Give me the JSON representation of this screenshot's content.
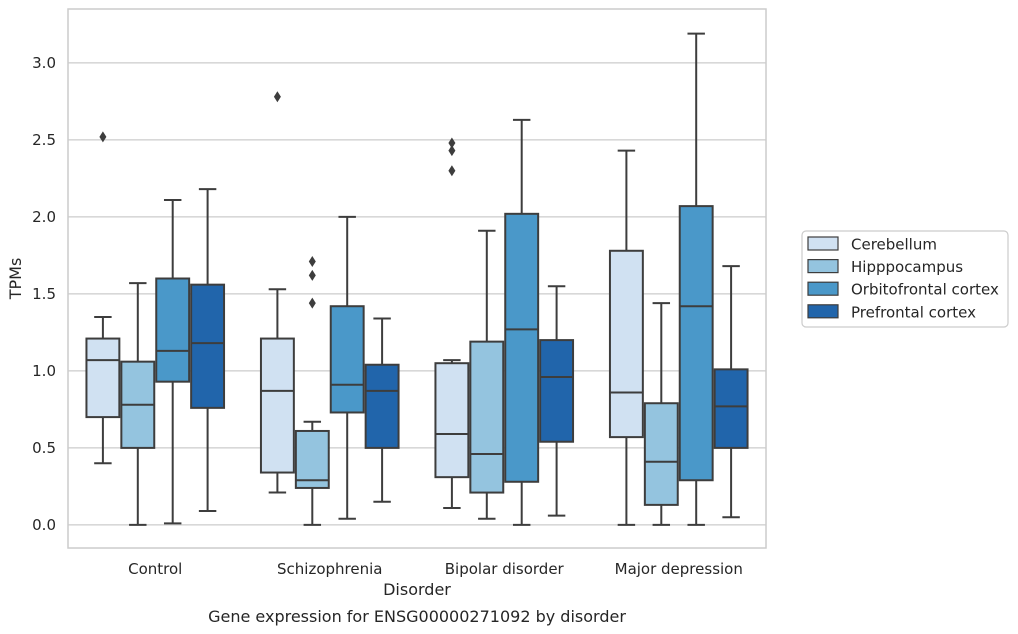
{
  "chart_data": {
    "type": "boxplot",
    "caption": "Gene expression for ENSG00000271092 by disorder",
    "xlabel": "Disorder",
    "ylabel": "TPMs",
    "ylim": [
      -0.15,
      3.35
    ],
    "yticks": [
      0.0,
      0.5,
      1.0,
      1.5,
      2.0,
      2.5,
      3.0
    ],
    "ytick_labels": [
      "0.0",
      "0.5",
      "1.0",
      "1.5",
      "2.0",
      "2.5",
      "3.0"
    ],
    "grid": "horizontal",
    "legend_position": "right-outside",
    "categories": [
      "Control",
      "Schizophrenia",
      "Bipolar disorder",
      "Major depression"
    ],
    "series": [
      {
        "name": "Cerebellum",
        "color": "#d0e1f2",
        "boxes": [
          {
            "whislo": 0.4,
            "q1": 0.7,
            "med": 1.07,
            "q3": 1.21,
            "whishi": 1.35,
            "fliers": [
              2.52
            ]
          },
          {
            "whislo": 0.21,
            "q1": 0.34,
            "med": 0.87,
            "q3": 1.21,
            "whishi": 1.53,
            "fliers": [
              2.78
            ]
          },
          {
            "whislo": 0.11,
            "q1": 0.31,
            "med": 0.59,
            "q3": 1.05,
            "whishi": 1.07,
            "fliers": [
              2.3,
              2.43,
              2.48
            ]
          },
          {
            "whislo": 0.0,
            "q1": 0.57,
            "med": 0.86,
            "q3": 1.78,
            "whishi": 2.43,
            "fliers": []
          }
        ]
      },
      {
        "name": "Hipppocampus",
        "color": "#94c4df",
        "boxes": [
          {
            "whislo": 0.0,
            "q1": 0.5,
            "med": 0.78,
            "q3": 1.06,
            "whishi": 1.57,
            "fliers": []
          },
          {
            "whislo": 0.0,
            "q1": 0.24,
            "med": 0.29,
            "q3": 0.61,
            "whishi": 0.67,
            "fliers": [
              1.44,
              1.62,
              1.71
            ]
          },
          {
            "whislo": 0.04,
            "q1": 0.21,
            "med": 0.46,
            "q3": 1.19,
            "whishi": 1.91,
            "fliers": []
          },
          {
            "whislo": 0.0,
            "q1": 0.13,
            "med": 0.41,
            "q3": 0.79,
            "whishi": 1.44,
            "fliers": []
          }
        ]
      },
      {
        "name": "Orbitofrontal cortex",
        "color": "#4a98c9",
        "boxes": [
          {
            "whislo": 0.01,
            "q1": 0.93,
            "med": 1.13,
            "q3": 1.6,
            "whishi": 2.11,
            "fliers": []
          },
          {
            "whislo": 0.04,
            "q1": 0.73,
            "med": 0.91,
            "q3": 1.42,
            "whishi": 2.0,
            "fliers": []
          },
          {
            "whislo": 0.0,
            "q1": 0.28,
            "med": 1.27,
            "q3": 2.02,
            "whishi": 2.63,
            "fliers": []
          },
          {
            "whislo": 0.0,
            "q1": 0.29,
            "med": 1.42,
            "q3": 2.07,
            "whishi": 3.19,
            "fliers": []
          }
        ]
      },
      {
        "name": "Prefrontal cortex",
        "color": "#2165ab",
        "boxes": [
          {
            "whislo": 0.09,
            "q1": 0.76,
            "med": 1.18,
            "q3": 1.56,
            "whishi": 2.18,
            "fliers": []
          },
          {
            "whislo": 0.15,
            "q1": 0.5,
            "med": 0.87,
            "q3": 1.04,
            "whishi": 1.34,
            "fliers": []
          },
          {
            "whislo": 0.06,
            "q1": 0.54,
            "med": 0.96,
            "q3": 1.2,
            "whishi": 1.55,
            "fliers": []
          },
          {
            "whislo": 0.05,
            "q1": 0.5,
            "med": 0.77,
            "q3": 1.01,
            "whishi": 1.68,
            "fliers": []
          }
        ]
      }
    ]
  },
  "colors": {
    "grid": "#cccccc",
    "frame": "#cccccc",
    "line": "#3d3d3d",
    "text": "#262626"
  }
}
